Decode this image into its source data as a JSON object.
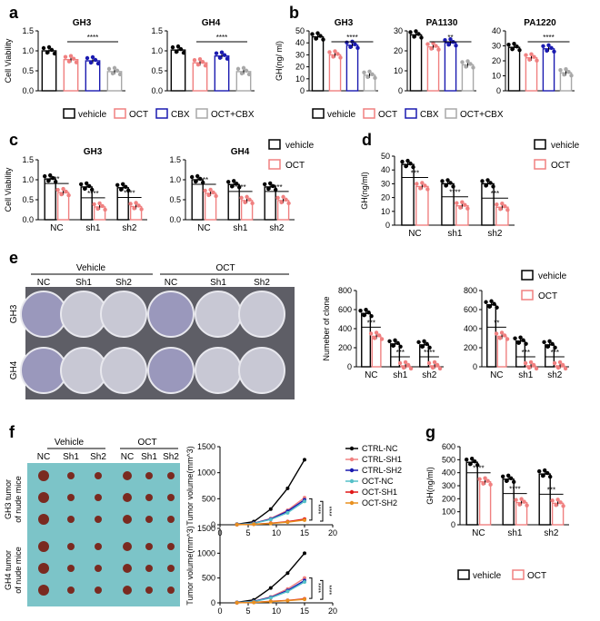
{
  "panels": {
    "a": "a",
    "b": "b",
    "c": "c",
    "d": "d",
    "e": "e",
    "f": "f",
    "g": "g"
  },
  "colors": {
    "vehicle": "#000000",
    "oct": "#f08080",
    "cbx": "#1a1ab0",
    "octcbx": "#a8a8a8",
    "ctrl_nc": "#000000",
    "ctrl_sh1": "#f08080",
    "ctrl_sh2": "#1a1ab0",
    "oct_nc": "#55c0c8",
    "oct_sh1": "#e01818",
    "oct_sh2": "#e89020"
  },
  "legends": {
    "four": [
      "vehicle",
      "OCT",
      "CBX",
      "OCT+CBX"
    ],
    "two": [
      "vehicle",
      "OCT"
    ],
    "tumor": [
      "CTRL-NC",
      "CTRL-SH1",
      "CTRL-SH2",
      "OCT-NC",
      "OCT-SH1",
      "OCT-SH2"
    ]
  },
  "photo_e": {
    "groups": [
      "Vehicle",
      "OCT"
    ],
    "columns": [
      "NC",
      "Sh1",
      "Sh2",
      "NC",
      "Sh1",
      "Sh2"
    ],
    "rows": [
      "GH3",
      "GH4"
    ]
  },
  "photo_f": {
    "groups": [
      "Vehicle",
      "OCT"
    ],
    "columns": [
      "NC",
      "Sh1",
      "Sh2",
      "NC",
      "Sh1",
      "Sh2"
    ],
    "row_labels": [
      [
        "GH3 tumor",
        "of nude mice"
      ],
      [
        "GH4 tumor",
        "of nude mice"
      ]
    ]
  },
  "chart_data": [
    {
      "id": "a1",
      "type": "bar",
      "title": "GH3",
      "ylabel": "Cell Viability",
      "categories": [
        "vehicle",
        "OCT",
        "CBX",
        "OCT+CBX"
      ],
      "values": [
        1.0,
        0.78,
        0.75,
        0.48
      ],
      "ylim": [
        0,
        1.5
      ],
      "yticks": [
        "0.0",
        "0.5",
        "1.0",
        "1.5"
      ],
      "sig": [
        "****"
      ]
    },
    {
      "id": "a2",
      "type": "bar",
      "title": "GH4",
      "ylabel": "",
      "categories": [
        "vehicle",
        "OCT",
        "CBX",
        "OCT+CBX"
      ],
      "values": [
        1.02,
        0.7,
        0.87,
        0.48
      ],
      "ylim": [
        0,
        1.5
      ],
      "yticks": [
        "0.0",
        "0.5",
        "1.0",
        "1.5"
      ],
      "sig": [
        "****"
      ]
    },
    {
      "id": "b1",
      "type": "bar",
      "title": "GH3",
      "ylabel": "GH(ng/ ml)",
      "categories": [
        "vehicle",
        "OCT",
        "CBX",
        "OCT+CBX"
      ],
      "values": [
        45,
        30,
        38,
        13
      ],
      "ylim": [
        0,
        50
      ],
      "yticks": [
        "0",
        "10",
        "20",
        "30",
        "40",
        "50"
      ],
      "sig": [
        "****"
      ]
    },
    {
      "id": "b2",
      "type": "bar",
      "title": "PA1130",
      "ylabel": "",
      "categories": [
        "vehicle",
        "OCT",
        "CBX",
        "OCT+CBX"
      ],
      "values": [
        28,
        22,
        24,
        13
      ],
      "ylim": [
        0,
        30
      ],
      "yticks": [
        "0",
        "10",
        "20",
        "30"
      ],
      "sig": [
        "**"
      ]
    },
    {
      "id": "b3",
      "type": "bar",
      "title": "PA1220",
      "ylabel": "",
      "categories": [
        "vehicle",
        "OCT",
        "CBX",
        "OCT+CBX"
      ],
      "values": [
        29,
        22,
        28,
        12
      ],
      "ylim": [
        0,
        40
      ],
      "yticks": [
        "0",
        "10",
        "20",
        "30",
        "40"
      ],
      "sig": [
        "****"
      ]
    },
    {
      "id": "c1",
      "type": "bar",
      "title": "GH3",
      "ylabel": "Cell Viability",
      "categories": [
        "NC",
        "sh1",
        "sh2"
      ],
      "series": [
        {
          "name": "vehicle",
          "values": [
            1.02,
            0.82,
            0.8
          ]
        },
        {
          "name": "OCT",
          "values": [
            0.68,
            0.32,
            0.33
          ]
        }
      ],
      "ylim": [
        0,
        1.5
      ],
      "yticks": [
        "0.0",
        "0.5",
        "1.0",
        "1.5"
      ],
      "sig": [
        "**",
        "****",
        "****"
      ]
    },
    {
      "id": "c2",
      "type": "bar",
      "title": "GH4",
      "ylabel": "",
      "categories": [
        "NC",
        "sh1",
        "sh2"
      ],
      "series": [
        {
          "name": "vehicle",
          "values": [
            1.0,
            0.88,
            0.82
          ]
        },
        {
          "name": "OCT",
          "values": [
            0.66,
            0.48,
            0.48
          ]
        }
      ],
      "ylim": [
        0,
        1.5
      ],
      "yticks": [
        "0.0",
        "0.5",
        "1.0",
        "1.5"
      ],
      "sig": [
        "***",
        "****",
        "****"
      ]
    },
    {
      "id": "d",
      "type": "bar",
      "title": "",
      "ylabel": "GH(ng/ml)",
      "categories": [
        "NC",
        "sh1",
        "sh2"
      ],
      "series": [
        {
          "name": "vehicle",
          "values": [
            44,
            30,
            30
          ]
        },
        {
          "name": "OCT",
          "values": [
            28,
            14,
            13
          ]
        }
      ],
      "ylim": [
        0,
        50
      ],
      "yticks": [
        "0",
        "10",
        "20",
        "30",
        "40",
        "50"
      ],
      "sig": [
        "***",
        "****",
        "***"
      ]
    },
    {
      "id": "e1",
      "type": "bar",
      "title": "",
      "ylabel": "Numeber of clone",
      "categories": [
        "NC",
        "sh1",
        "sh2"
      ],
      "series": [
        {
          "name": "vehicle",
          "values": [
            560,
            240,
            230
          ]
        },
        {
          "name": "OCT",
          "values": [
            320,
            10,
            10
          ]
        }
      ],
      "ylim": [
        0,
        800
      ],
      "yticks": [
        "0",
        "200",
        "400",
        "600",
        "800"
      ],
      "sig": [
        "***",
        "***",
        "****"
      ]
    },
    {
      "id": "e2",
      "type": "bar",
      "title": "",
      "ylabel": "",
      "categories": [
        "NC",
        "sh1",
        "sh2"
      ],
      "series": [
        {
          "name": "vehicle",
          "values": [
            650,
            270,
            230
          ]
        },
        {
          "name": "OCT",
          "values": [
            320,
            10,
            10
          ]
        }
      ],
      "ylim": [
        0,
        800
      ],
      "yticks": [
        "0",
        "200",
        "400",
        "600",
        "800"
      ],
      "sig": [
        "**",
        "***",
        "***"
      ]
    },
    {
      "id": "f1",
      "type": "line",
      "title": "",
      "ylabel": "Tumor volume(mm^3)",
      "x": [
        3,
        6,
        9,
        12,
        15
      ],
      "series": [
        {
          "name": "CTRL-NC",
          "values": [
            10,
            60,
            300,
            700,
            1250
          ]
        },
        {
          "name": "CTRL-SH1",
          "values": [
            5,
            30,
            120,
            280,
            520
          ]
        },
        {
          "name": "CTRL-SH2",
          "values": [
            5,
            30,
            110,
            260,
            480
          ]
        },
        {
          "name": "OCT-NC",
          "values": [
            5,
            25,
            100,
            230,
            450
          ]
        },
        {
          "name": "OCT-SH1",
          "values": [
            2,
            10,
            30,
            60,
            110
          ]
        },
        {
          "name": "OCT-SH2",
          "values": [
            2,
            8,
            25,
            50,
            90
          ]
        }
      ],
      "xlim": [
        0,
        20
      ],
      "ylim": [
        0,
        1500
      ],
      "xticks": [
        "0",
        "5",
        "10",
        "15",
        "20"
      ],
      "yticks": [
        "0",
        "500",
        "1000",
        "1500"
      ],
      "sig": [
        "****",
        "****"
      ]
    },
    {
      "id": "f2",
      "type": "line",
      "title": "",
      "ylabel": "Tumor volume(mm^3)",
      "x": [
        3,
        6,
        9,
        12,
        15
      ],
      "series": [
        {
          "name": "CTRL-NC",
          "values": [
            10,
            60,
            300,
            600,
            1000
          ]
        },
        {
          "name": "CTRL-SH1",
          "values": [
            5,
            30,
            120,
            280,
            500
          ]
        },
        {
          "name": "CTRL-SH2",
          "values": [
            5,
            30,
            110,
            250,
            450
          ]
        },
        {
          "name": "OCT-NC",
          "values": [
            5,
            25,
            100,
            230,
            420
          ]
        },
        {
          "name": "OCT-SH1",
          "values": [
            2,
            10,
            30,
            50,
            80
          ]
        },
        {
          "name": "OCT-SH2",
          "values": [
            2,
            8,
            25,
            45,
            70
          ]
        }
      ],
      "xlim": [
        0,
        20
      ],
      "ylim": [
        0,
        1500
      ],
      "xticks": [
        "0",
        "5",
        "10",
        "15",
        "20"
      ],
      "yticks": [
        "0",
        "500",
        "1000",
        "1500"
      ],
      "sig": [
        "****",
        "****"
      ]
    },
    {
      "id": "g",
      "type": "bar",
      "title": "",
      "ylabel": "GH(ng/ml)",
      "categories": [
        "NC",
        "sh1",
        "sh2"
      ],
      "series": [
        {
          "name": "vehicle",
          "values": [
            480,
            350,
            390
          ]
        },
        {
          "name": "OCT",
          "values": [
            330,
            170,
            165
          ]
        }
      ],
      "ylim": [
        0,
        600
      ],
      "yticks": [
        "0",
        "100",
        "200",
        "300",
        "400",
        "500",
        "600"
      ],
      "sig": [
        "****",
        "****",
        "***"
      ]
    }
  ]
}
